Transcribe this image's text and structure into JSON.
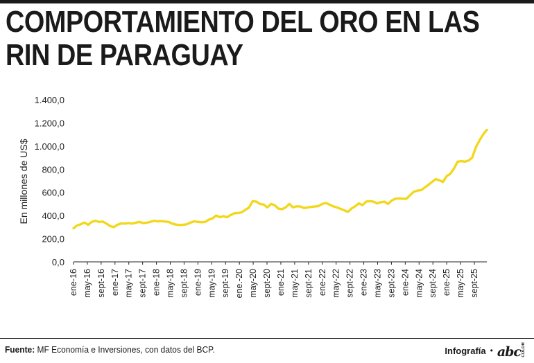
{
  "title": {
    "line1": "COMPORTAMIENTO DEL ORO EN LAS",
    "line2": "RIN DE PARAGUAY"
  },
  "footer": {
    "source_label": "Fuente:",
    "source_text": "MF Economía e Inversiones, con datos del BCP.",
    "credit": "Infografía",
    "separator": "•",
    "logo": "abc",
    "logo_small": "COLOR"
  },
  "colors": {
    "line": "#f2d81d",
    "text": "#1a1a1a"
  },
  "chart_data": {
    "type": "line",
    "title": "COMPORTAMIENTO DEL ORO EN LAS RIN DE PARAGUAY",
    "xlabel": "",
    "ylabel": "En millones de US$",
    "ylim": [
      0,
      1400
    ],
    "grid": false,
    "yticks": [
      0,
      200,
      400,
      600,
      800,
      1000,
      1200,
      1400
    ],
    "ytick_labels": [
      "0,0",
      "200,0",
      "400,0",
      "600,0",
      "800,0",
      "1.000,0",
      "1.200,0",
      "1.400,0"
    ],
    "xtick_labels": [
      "ene-16",
      "may-16",
      "sept-16",
      "ene-17",
      "may-17",
      "sept-17",
      "ene-18",
      "may-18",
      "sept-18",
      "ene-19",
      "may-19",
      "sept-19",
      "ene.-20",
      "may-20",
      "sept-20",
      "ene-21",
      "may-21",
      "sept-21",
      "ene-22",
      "may-22",
      "sept-22",
      "ene-23",
      "may-23",
      "sept-23",
      "ene-24",
      "may-24",
      "sept-24",
      "ene-25",
      "may-25",
      "sept-25"
    ],
    "series": [
      {
        "name": "Oro",
        "values": [
          290,
          315,
          325,
          340,
          320,
          345,
          355,
          345,
          348,
          330,
          310,
          300,
          320,
          332,
          330,
          335,
          330,
          338,
          345,
          335,
          338,
          345,
          355,
          350,
          352,
          348,
          345,
          330,
          322,
          318,
          320,
          325,
          340,
          350,
          345,
          342,
          345,
          365,
          375,
          400,
          385,
          395,
          385,
          405,
          420,
          422,
          428,
          450,
          470,
          525,
          520,
          500,
          495,
          470,
          500,
          490,
          460,
          455,
          470,
          500,
          470,
          480,
          478,
          465,
          470,
          475,
          478,
          482,
          500,
          508,
          495,
          480,
          470,
          458,
          445,
          432,
          460,
          480,
          505,
          490,
          520,
          525,
          520,
          505,
          515,
          520,
          500,
          530,
          545,
          548,
          545,
          545,
          575,
          605,
          615,
          620,
          640,
          665,
          690,
          715,
          705,
          690,
          740,
          760,
          805,
          865,
          870,
          865,
          875,
          900,
          990,
          1050,
          1100,
          1140
        ]
      }
    ]
  }
}
